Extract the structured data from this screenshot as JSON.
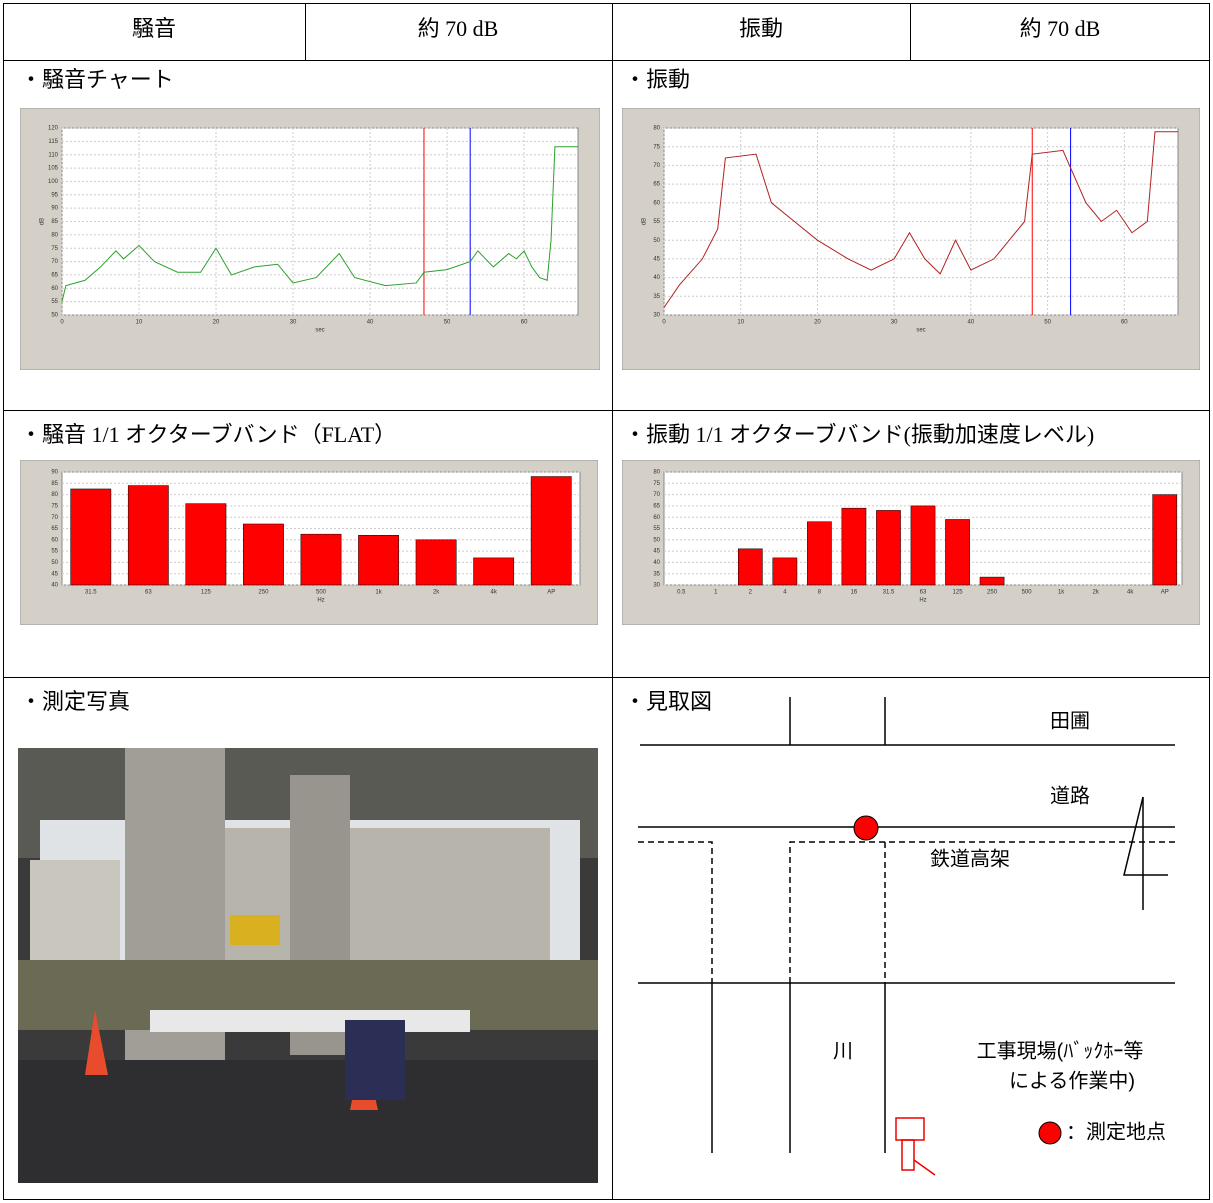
{
  "header": [
    "騒音",
    "約 70 dB",
    "振動",
    "約 70 dB"
  ],
  "noise_level_chart": {
    "label": "・騒音チャート",
    "type": "line",
    "color": "#2ca02c",
    "x_label": "sec",
    "y_label": "dB",
    "x": [
      0,
      0.5,
      3,
      5,
      7,
      8,
      10,
      12,
      15,
      18,
      20,
      22,
      25,
      28,
      30,
      33,
      36,
      38,
      42,
      46,
      47,
      50,
      53,
      54,
      56,
      58,
      59,
      60,
      61,
      62,
      63,
      63.5,
      64,
      67
    ],
    "values": [
      55,
      61,
      63,
      68,
      74,
      71,
      76,
      70,
      66,
      66,
      75,
      65,
      68,
      69,
      62,
      64,
      73,
      64,
      61,
      62,
      66,
      67,
      70,
      74,
      68,
      73,
      71,
      74,
      68,
      64,
      63,
      78,
      113,
      113
    ],
    "xlim": [
      0,
      67
    ],
    "ylim": [
      50,
      120
    ],
    "xticks": [
      0,
      10,
      20,
      30,
      40,
      50,
      60
    ],
    "yticks": [
      50,
      55,
      60,
      65,
      70,
      75,
      80,
      85,
      90,
      95,
      100,
      105,
      110,
      115,
      120
    ],
    "cursors": [
      {
        "x": 47,
        "color": "#ff0000"
      },
      {
        "x": 53,
        "color": "#0000ff"
      }
    ]
  },
  "vibration_level_chart": {
    "label": "・振動",
    "type": "line",
    "color": "#b22222",
    "x_label": "sec",
    "y_label": "dB",
    "x": [
      0,
      2,
      5,
      7,
      8,
      12,
      14,
      17,
      20,
      24,
      27,
      30,
      32,
      34,
      36,
      38,
      40,
      43,
      45,
      47,
      48,
      52,
      55,
      57,
      59,
      61,
      63,
      64,
      67
    ],
    "values": [
      32,
      38,
      45,
      53,
      72,
      73,
      60,
      55,
      50,
      45,
      42,
      45,
      52,
      45,
      41,
      50,
      42,
      45,
      50,
      55,
      73,
      74,
      60,
      55,
      58,
      52,
      55,
      79,
      79
    ],
    "xlim": [
      0,
      67
    ],
    "ylim": [
      30,
      80
    ],
    "xticks": [
      0,
      10,
      20,
      30,
      40,
      50,
      60
    ],
    "yticks": [
      30,
      35,
      40,
      45,
      50,
      55,
      60,
      65,
      70,
      75,
      80
    ],
    "cursors": [
      {
        "x": 48,
        "color": "#ff0000"
      },
      {
        "x": 53,
        "color": "#0000ff"
      }
    ]
  },
  "noise_octave_chart": {
    "label": "・騒音 1/1 オクターブバンド（FLAT）",
    "type": "bar",
    "color": "#ff0000",
    "x_label": "Hz",
    "categories": [
      "31.5",
      "63",
      "125",
      "250",
      "500",
      "1k",
      "2k",
      "4k",
      "AP"
    ],
    "values": [
      82.5,
      84,
      76,
      67,
      62.5,
      62,
      60,
      52,
      88
    ],
    "ylim": [
      40,
      90
    ],
    "yticks": [
      40,
      45,
      50,
      55,
      60,
      65,
      70,
      75,
      80,
      85,
      90
    ]
  },
  "vibration_octave_chart": {
    "label": "・振動 1/1 オクターブバンド(振動加速度レベル)",
    "type": "bar",
    "color": "#ff0000",
    "x_label": "Hz",
    "categories": [
      "0.5",
      "1",
      "2",
      "4",
      "8",
      "16",
      "31.5",
      "63",
      "125",
      "250",
      "500",
      "1k",
      "2k",
      "4k",
      "AP"
    ],
    "values": [
      null,
      null,
      46,
      42,
      58,
      64,
      63,
      65,
      59,
      33.5,
      null,
      null,
      null,
      null,
      70
    ],
    "ylim": [
      30,
      80
    ],
    "yticks": [
      30,
      35,
      40,
      45,
      50,
      55,
      60,
      65,
      70,
      75,
      80
    ]
  },
  "photo": {
    "label": "・測定写真"
  },
  "map": {
    "label": "・見取図",
    "fields": "田圃",
    "road": "道路",
    "railway": "鉄道高架",
    "river": "川",
    "site": [
      "工事現場(ﾊﾞｯｸﾎｰ等",
      "による作業中)"
    ],
    "legend": "：測定地点"
  }
}
